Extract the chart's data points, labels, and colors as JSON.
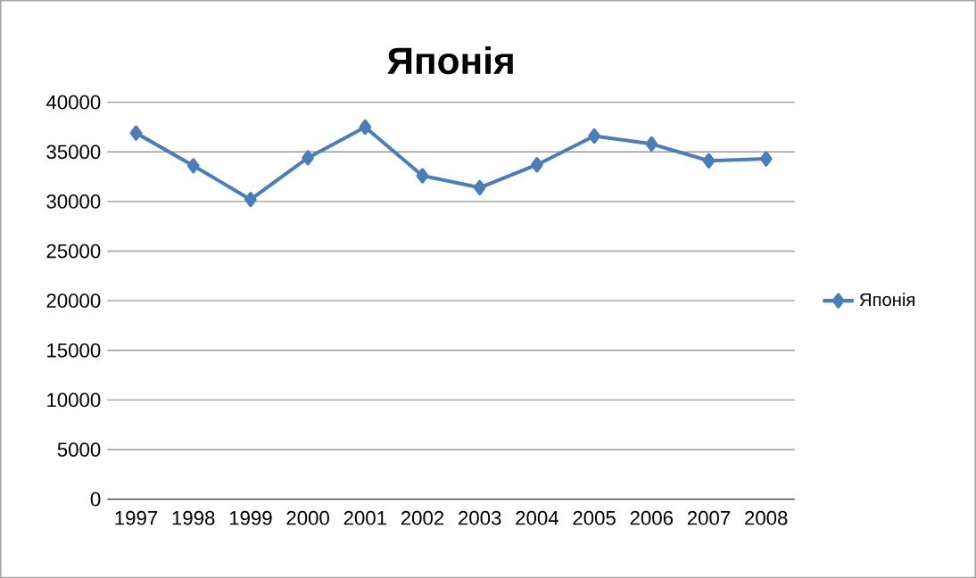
{
  "chart_data": {
    "type": "line",
    "title": "Японія",
    "categories": [
      "1997",
      "1998",
      "1999",
      "2000",
      "2001",
      "2002",
      "2003",
      "2004",
      "2005",
      "2006",
      "2007",
      "2008"
    ],
    "series": [
      {
        "name": "Японія",
        "color": "#4a7ebb",
        "values": [
          36900,
          33600,
          30200,
          34400,
          37500,
          32600,
          31400,
          33700,
          36600,
          35800,
          34100,
          34300
        ]
      }
    ],
    "ylim": [
      0,
      40000
    ],
    "yticks": [
      0,
      5000,
      10000,
      15000,
      20000,
      25000,
      30000,
      35000,
      40000
    ],
    "grid": "y",
    "legend": "right",
    "marker": "diamond"
  }
}
